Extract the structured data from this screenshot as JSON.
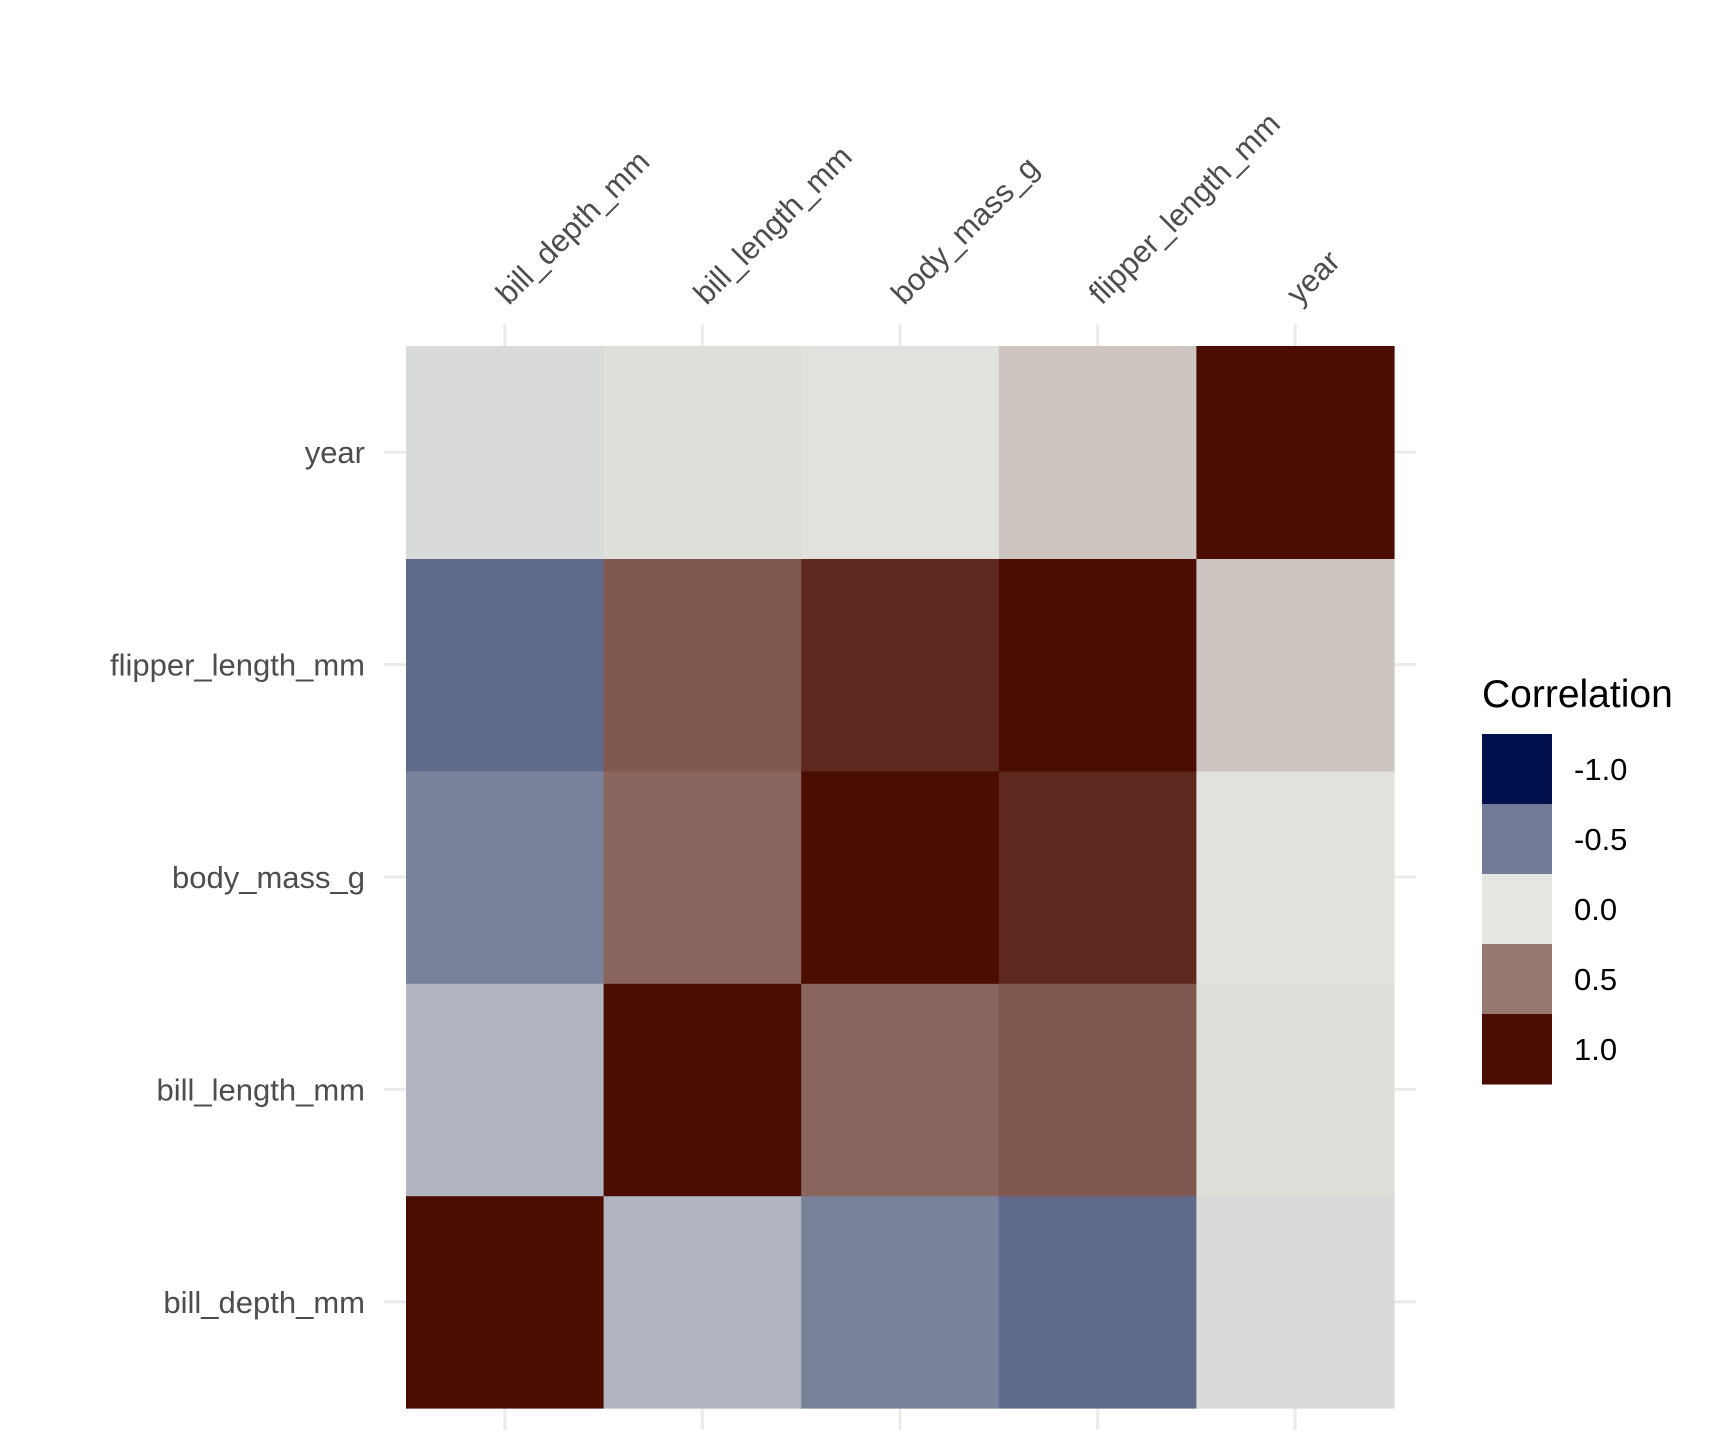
{
  "chart_data": {
    "type": "heatmap",
    "title": "",
    "xlabel": "",
    "ylabel": "",
    "x_categories": [
      "bill_depth_mm",
      "bill_length_mm",
      "body_mass_g",
      "flipper_length_mm",
      "year"
    ],
    "y_categories": [
      "bill_depth_mm",
      "bill_length_mm",
      "body_mass_g",
      "flipper_length_mm",
      "year"
    ],
    "values": [
      [
        1.0,
        -0.23,
        -0.47,
        -0.58,
        -0.05
      ],
      [
        -0.23,
        1.0,
        0.59,
        0.65,
        0.03
      ],
      [
        -0.47,
        0.59,
        1.0,
        0.87,
        0.02
      ],
      [
        -0.58,
        0.65,
        0.87,
        1.0,
        0.15
      ],
      [
        -0.05,
        0.03,
        0.02,
        0.15,
        1.0
      ]
    ],
    "value_range": [
      -1,
      1
    ],
    "grid": true,
    "x_axis_position": "top",
    "legend": {
      "title": "Correlation",
      "placement": "right",
      "breaks": [
        -1.0,
        -0.5,
        0.0,
        0.5,
        1.0
      ],
      "labels": [
        "-1.0",
        "-0.5",
        "0.0",
        "0.5",
        "1.0"
      ]
    },
    "colors": {
      "low": "#00104d",
      "mid": "#e4e6e1",
      "high": "#4b0c02",
      "grid": "#ebebeb",
      "text": "#4d4d4d",
      "legend_title": "#000000"
    }
  }
}
